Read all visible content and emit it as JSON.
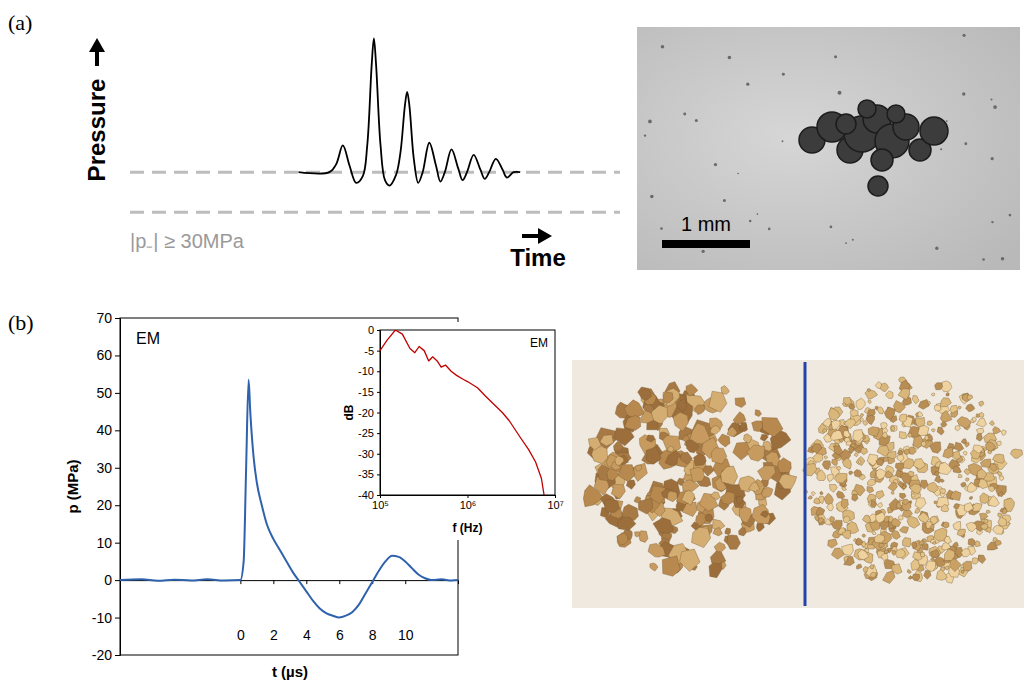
{
  "chart_data": [
    {
      "type": "line",
      "panel": "(a)",
      "xlabel": "Time",
      "ylabel": "Pressure",
      "annotation": "|p₋| ≥ 30MPa",
      "tick_labels": false,
      "x": [
        0,
        14,
        17,
        20,
        23,
        26,
        29,
        31,
        33,
        34,
        35,
        37,
        39,
        41,
        44,
        46,
        48,
        49,
        50,
        52,
        54,
        56,
        59,
        62,
        64,
        66,
        69,
        72,
        74,
        76,
        79,
        82,
        84,
        86,
        89,
        92,
        94,
        97,
        100
      ],
      "values": [
        0,
        0,
        0.6,
        2,
        0.5,
        -0.8,
        -0.3,
        2,
        8,
        10,
        8,
        2,
        -0.6,
        -1,
        -0.2,
        1.5,
        5,
        6,
        5,
        1,
        -0.8,
        0,
        2.2,
        0.5,
        -0.7,
        0,
        1.7,
        0.3,
        -0.6,
        0,
        1.3,
        0.2,
        -0.5,
        0,
        1,
        0.2,
        -0.4,
        0,
        0
      ],
      "color": "#000000",
      "reference_lines": [
        0,
        -3
      ],
      "line_style": "dashed",
      "xlim": [
        -76,
        145
      ],
      "ylim": [
        -3.5,
        11
      ]
    },
    {
      "type": "line",
      "panel": "(b)",
      "annotation": "EM",
      "xlabel": "t (µs)",
      "ylabel": "p (MPa)",
      "x": [
        -7.3,
        -6,
        -5,
        -4,
        -3,
        -2,
        -1,
        0,
        0.2,
        0.35,
        0.5,
        0.6,
        0.8,
        1,
        1.3,
        1.6,
        2,
        2.4,
        2.8,
        3.2,
        3.6,
        4,
        4.4,
        4.8,
        5.2,
        5.6,
        6,
        6.4,
        6.8,
        7.2,
        7.6,
        8,
        8.4,
        8.8,
        9.2,
        9.6,
        10,
        10.4,
        10.8,
        11.2,
        11.6,
        12.2,
        12.8,
        13.2
      ],
      "values": [
        0,
        0.2,
        -0.2,
        0.1,
        -0.1,
        0.2,
        -0.1,
        0,
        5,
        30,
        53.5,
        45,
        33,
        26,
        20,
        15,
        11,
        8,
        5,
        2,
        -0.5,
        -3,
        -5.5,
        -7.5,
        -8.8,
        -9.5,
        -10,
        -9.5,
        -8.5,
        -6.5,
        -3.5,
        -0.5,
        2.5,
        5,
        6.5,
        6.2,
        5,
        3.2,
        1.5,
        0.5,
        0,
        0.2,
        -0.1,
        0
      ],
      "color": "#2f62ad",
      "xlim": [
        -7.3,
        13.2
      ],
      "ylim": [
        -20,
        70
      ],
      "xticks": [
        0,
        2,
        4,
        6,
        8,
        10
      ],
      "yticks": [
        -20,
        -10,
        0,
        10,
        20,
        30,
        40,
        50,
        60,
        70
      ]
    },
    {
      "type": "line",
      "annotation": "EM",
      "xlabel": "f (Hz)",
      "ylabel": "dB",
      "log": "x",
      "x": [
        100000,
        120000,
        150000,
        180000,
        220000,
        250000,
        280000,
        320000,
        360000,
        400000,
        450000,
        500000,
        560000,
        650000,
        750000,
        900000,
        1000000,
        1300000,
        1600000,
        2000000,
        2500000,
        3000000,
        4000000,
        5000000,
        6000000,
        7000000,
        7500000
      ],
      "values": [
        -5,
        -2.5,
        0,
        -1,
        -4.5,
        -5.5,
        -4,
        -5,
        -7.5,
        -6.5,
        -7.5,
        -9,
        -8.5,
        -10,
        -11,
        -12,
        -12.5,
        -14,
        -16,
        -18,
        -20,
        -22,
        -26,
        -29,
        -32,
        -36,
        -40
      ],
      "color": "#c00000",
      "xlim": [
        100000,
        10000000
      ],
      "ylim": [
        -40,
        0
      ],
      "xticks": [
        {
          "value": 100000,
          "label": "10⁵"
        },
        {
          "value": 1000000,
          "label": "10⁶"
        },
        {
          "value": 10000000,
          "label": "10⁷"
        }
      ],
      "yticks": [
        0,
        -5,
        -10,
        -15,
        -20,
        -25,
        -30,
        -35,
        -40
      ]
    }
  ],
  "photo": {
    "scale_bar": "1 mm"
  }
}
